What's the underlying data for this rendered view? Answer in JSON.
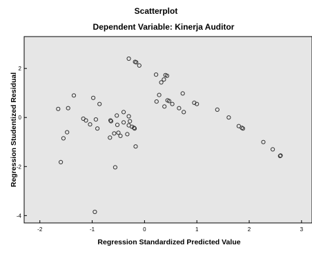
{
  "chart_data": {
    "type": "scatter",
    "title": "Scatterplot",
    "subtitle": "Dependent Variable: Kinerja Auditor",
    "xlabel": "Regression Standardized Predicted Value",
    "ylabel": "Regression Studentized Residual",
    "xlim": [
      -2.3,
      3.2
    ],
    "ylim": [
      -4.3,
      3.3
    ],
    "xticks": [
      -2,
      -1,
      0,
      1,
      2,
      3
    ],
    "yticks": [
      -4,
      -2,
      0,
      2
    ],
    "grid": false,
    "legend": "none",
    "plot_background": "#e6e6e6",
    "marker_color": "#333333",
    "points": [
      {
        "x": -0.3,
        "y": 2.4
      },
      {
        "x": -0.18,
        "y": 2.27
      },
      {
        "x": -0.16,
        "y": 2.25
      },
      {
        "x": -0.1,
        "y": 2.12
      },
      {
        "x": 0.22,
        "y": 1.75
      },
      {
        "x": 0.4,
        "y": 1.73
      },
      {
        "x": 0.43,
        "y": 1.7
      },
      {
        "x": 0.37,
        "y": 1.55
      },
      {
        "x": 0.32,
        "y": 1.43
      },
      {
        "x": -1.35,
        "y": 0.9
      },
      {
        "x": -0.98,
        "y": 0.8
      },
      {
        "x": 0.28,
        "y": 0.92
      },
      {
        "x": 0.73,
        "y": 0.98
      },
      {
        "x": 0.44,
        "y": 0.7
      },
      {
        "x": 0.47,
        "y": 0.67
      },
      {
        "x": 0.23,
        "y": 0.65
      },
      {
        "x": 0.53,
        "y": 0.55
      },
      {
        "x": -0.86,
        "y": 0.55
      },
      {
        "x": 0.95,
        "y": 0.6
      },
      {
        "x": 1.0,
        "y": 0.55
      },
      {
        "x": 0.38,
        "y": 0.45
      },
      {
        "x": -1.65,
        "y": 0.35
      },
      {
        "x": -1.46,
        "y": 0.38
      },
      {
        "x": 0.66,
        "y": 0.38
      },
      {
        "x": 0.75,
        "y": 0.22
      },
      {
        "x": 1.39,
        "y": 0.32
      },
      {
        "x": -0.4,
        "y": 0.22
      },
      {
        "x": -0.53,
        "y": 0.08
      },
      {
        "x": -0.3,
        "y": 0.05
      },
      {
        "x": 1.61,
        "y": 0.0
      },
      {
        "x": -1.17,
        "y": -0.05
      },
      {
        "x": -1.12,
        "y": -0.12
      },
      {
        "x": -0.65,
        "y": -0.12
      },
      {
        "x": -0.93,
        "y": -0.08
      },
      {
        "x": -0.64,
        "y": -0.15
      },
      {
        "x": -0.4,
        "y": -0.2
      },
      {
        "x": -0.28,
        "y": -0.15
      },
      {
        "x": -1.04,
        "y": -0.28
      },
      {
        "x": -0.52,
        "y": -0.3
      },
      {
        "x": -0.3,
        "y": -0.32
      },
      {
        "x": -0.24,
        "y": -0.38
      },
      {
        "x": -0.2,
        "y": -0.42
      },
      {
        "x": -0.19,
        "y": -0.45
      },
      {
        "x": -0.9,
        "y": -0.45
      },
      {
        "x": -1.48,
        "y": -0.6
      },
      {
        "x": -0.5,
        "y": -0.62
      },
      {
        "x": -0.58,
        "y": -0.65
      },
      {
        "x": -0.33,
        "y": -0.68
      },
      {
        "x": -0.46,
        "y": -0.75
      },
      {
        "x": -1.55,
        "y": -0.85
      },
      {
        "x": -0.66,
        "y": -0.82
      },
      {
        "x": 1.8,
        "y": -0.35
      },
      {
        "x": 1.86,
        "y": -0.42
      },
      {
        "x": 1.88,
        "y": -0.45
      },
      {
        "x": -0.17,
        "y": -1.18
      },
      {
        "x": 2.27,
        "y": -1.0
      },
      {
        "x": 2.45,
        "y": -1.3
      },
      {
        "x": 2.6,
        "y": -1.55
      },
      {
        "x": 2.59,
        "y": -1.57
      },
      {
        "x": -1.6,
        "y": -1.82
      },
      {
        "x": -0.56,
        "y": -2.03
      },
      {
        "x": -0.95,
        "y": -3.85
      }
    ]
  }
}
